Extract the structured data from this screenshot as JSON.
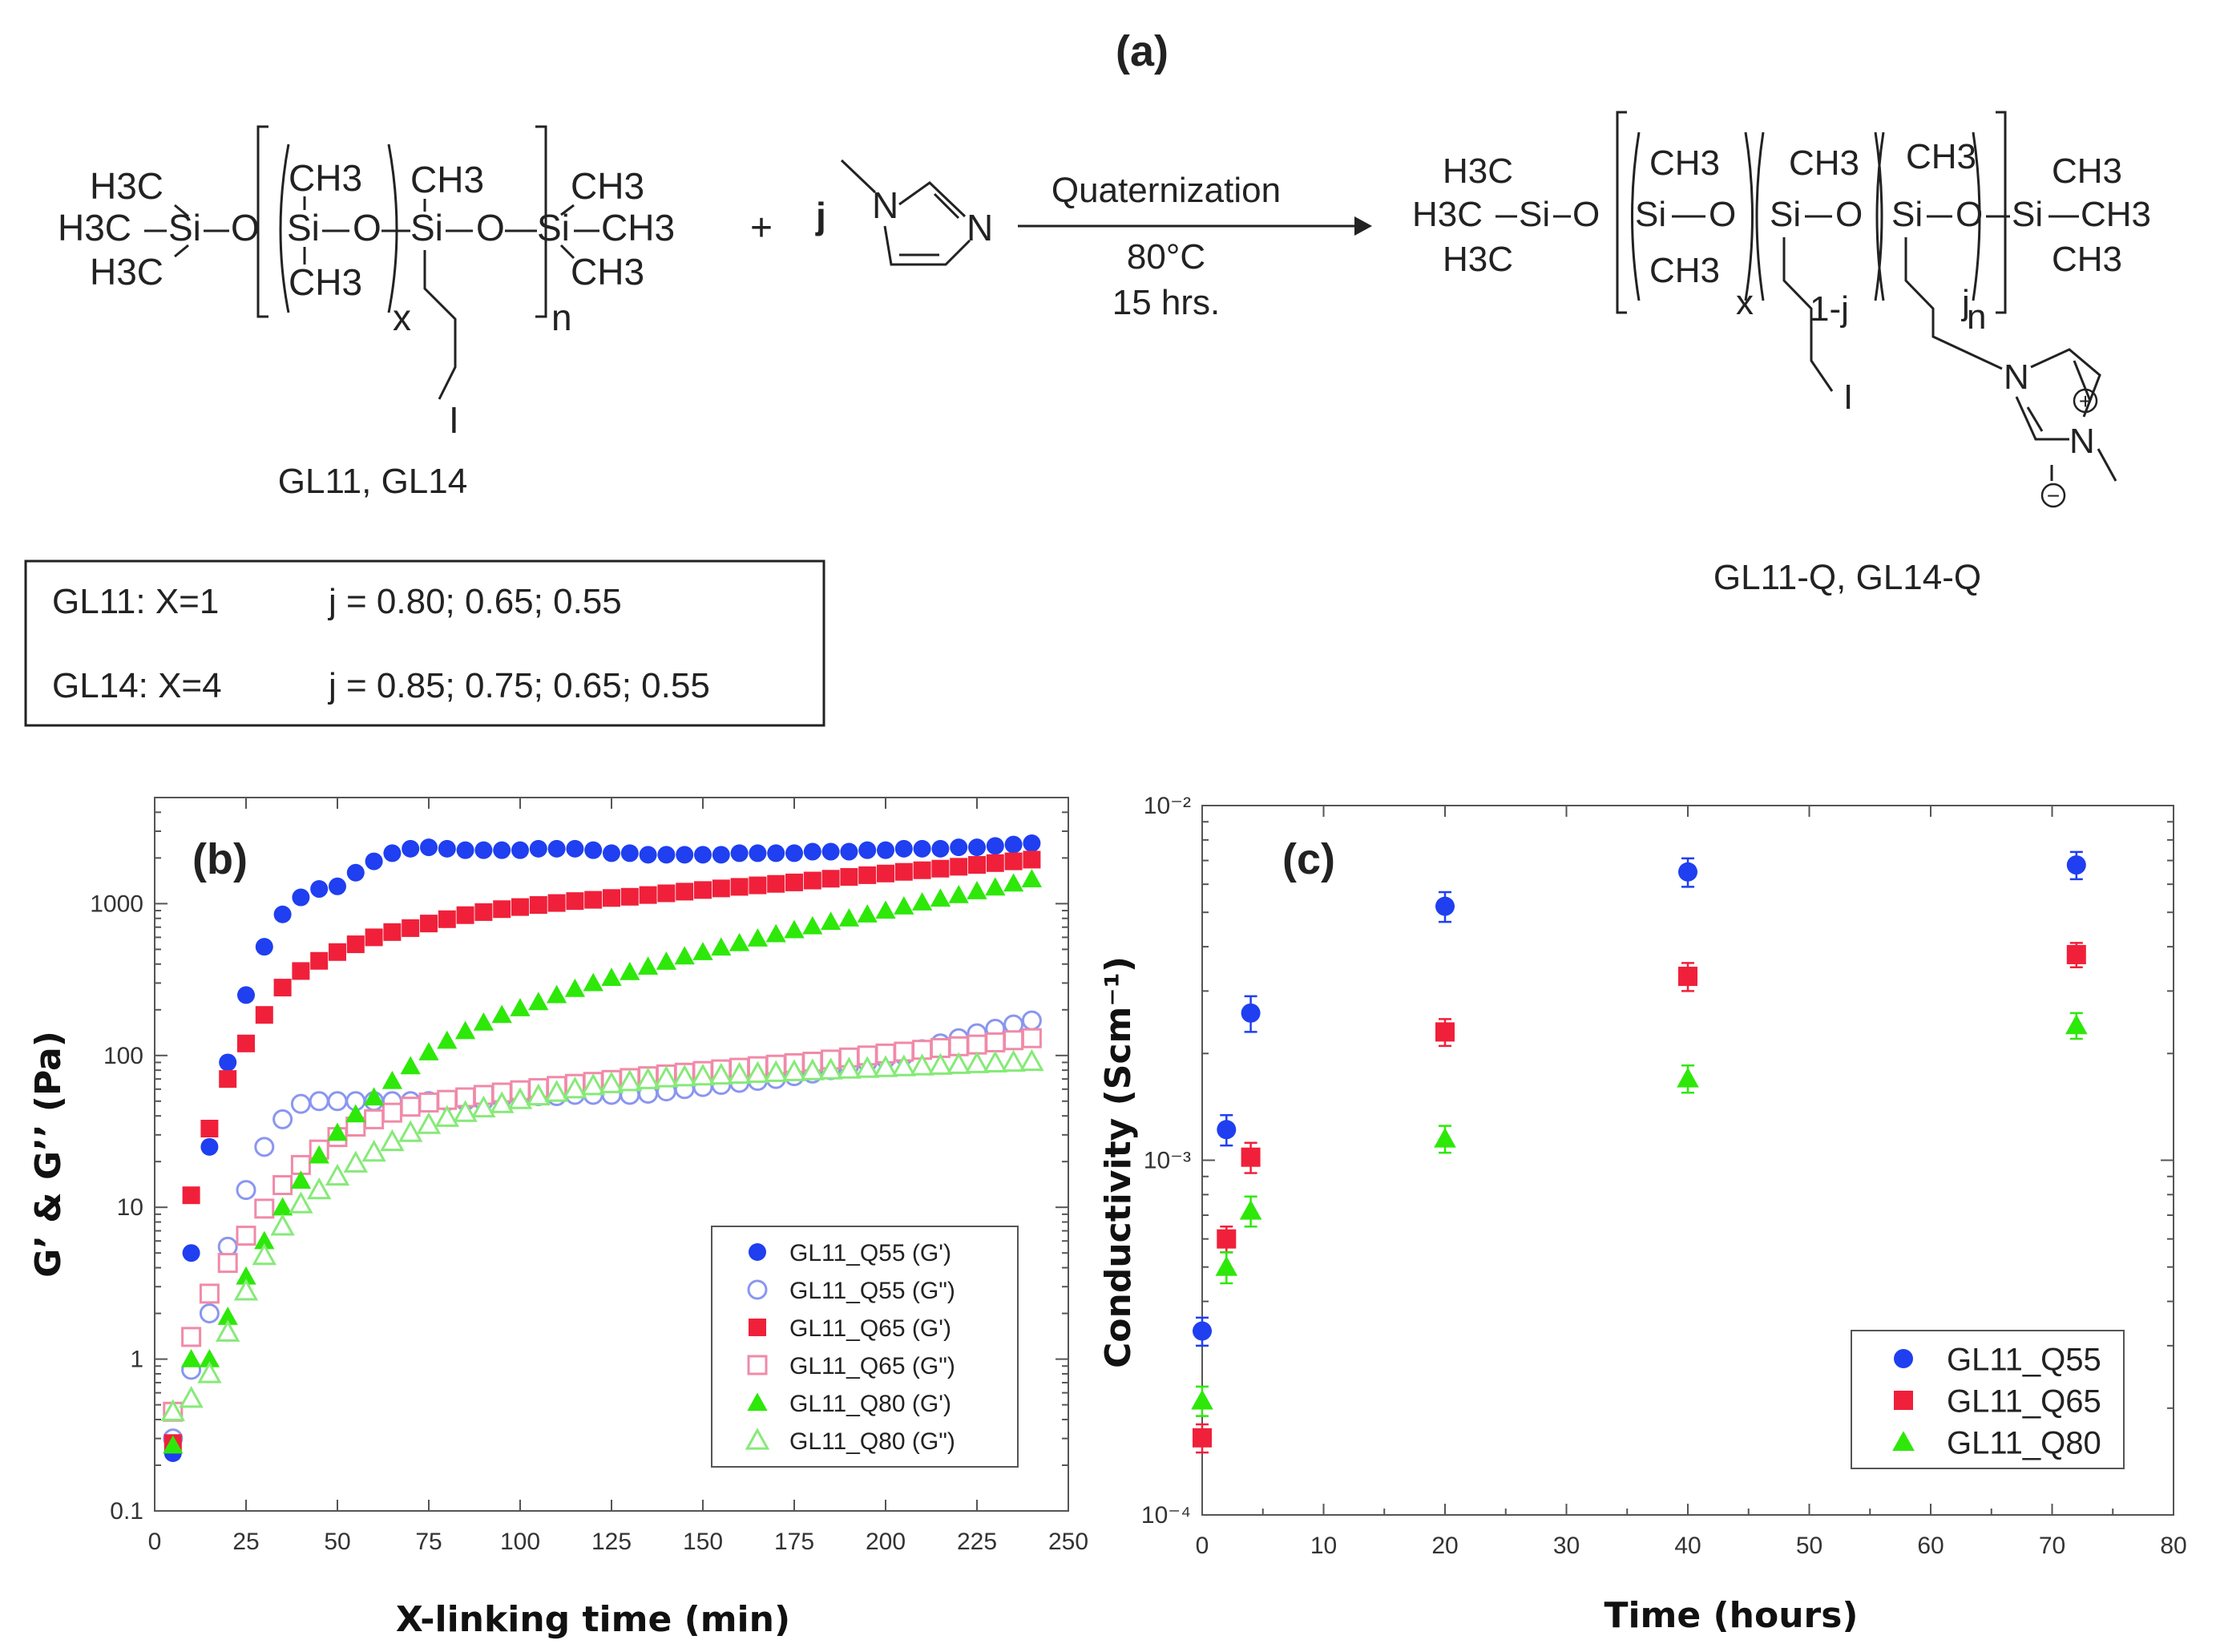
{
  "figure": {
    "panel_a": {
      "label": "(a)",
      "reagent_j": "j",
      "arrow_top": "Quaternization",
      "arrow_temp": "80°C",
      "arrow_time": "15 hrs.",
      "reactant_name": "GL11, GL14",
      "product_name": "GL11-Q, GL14-Q",
      "plus": "+",
      "table": {
        "row1_name": "GL11: X=1",
        "row1_j": "j = 0.80; 0.65; 0.55",
        "row2_name": "GL14: X=4",
        "row2_j": "j = 0.85; 0.75; 0.65; 0.55"
      },
      "atoms": {
        "H3C": "H3C",
        "CH3": "CH3",
        "Si": "Si",
        "O": "O",
        "I": "I",
        "N": "N",
        "x": "x",
        "n": "n",
        "j": "j",
        "one_minus_j": "1-j",
        "plus_charge": "+",
        "minus_charge": "−"
      }
    },
    "panel_b_label": "(b)",
    "panel_c_label": "(c)"
  },
  "colors": {
    "blue": "#1f3ff0",
    "blue_light": "#8a96f0",
    "red": "#f0203a",
    "pink": "#f08aa8",
    "green": "#2ee80a",
    "green_light": "#86ea78"
  },
  "chart_data": [
    {
      "id": "b",
      "type": "scatter",
      "title": "",
      "xlabel": "X-linking time (min)",
      "ylabel": "G’ & G’’ (Pa)",
      "xlim": [
        0,
        250
      ],
      "ylim": [
        0.1,
        5000
      ],
      "yscale": "log",
      "xticks": [
        "0",
        "25",
        "50",
        "75",
        "100",
        "125",
        "150",
        "175",
        "200",
        "225",
        "250"
      ],
      "yticks": [
        {
          "v": 0.1,
          "label": "0.1"
        },
        {
          "v": 1,
          "label": "1"
        },
        {
          "v": 10,
          "label": "10"
        },
        {
          "v": 100,
          "label": "100"
        },
        {
          "v": 1000,
          "label": "1000"
        }
      ],
      "legend_position": "bottom-right",
      "x": [
        5,
        10,
        15,
        20,
        25,
        30,
        35,
        40,
        45,
        50,
        55,
        60,
        65,
        70,
        75,
        80,
        85,
        90,
        95,
        100,
        105,
        110,
        115,
        120,
        125,
        130,
        135,
        140,
        145,
        150,
        155,
        160,
        165,
        170,
        175,
        180,
        185,
        190,
        195,
        200,
        205,
        210,
        215,
        220,
        225,
        230,
        235,
        240
      ],
      "series": [
        {
          "name": "GL11_Q55 (G')",
          "marker": "circle",
          "filled": true,
          "color": "#1f3ff0",
          "values": [
            0.24,
            5,
            25,
            90,
            250,
            520,
            850,
            1100,
            1250,
            1300,
            1600,
            1900,
            2150,
            2300,
            2350,
            2300,
            2250,
            2250,
            2250,
            2250,
            2300,
            2300,
            2300,
            2250,
            2150,
            2150,
            2100,
            2100,
            2100,
            2100,
            2100,
            2150,
            2150,
            2150,
            2150,
            2200,
            2200,
            2200,
            2250,
            2250,
            2300,
            2300,
            2300,
            2350,
            2350,
            2400,
            2450,
            2500
          ]
        },
        {
          "name": "GL11_Q55 (G\")",
          "marker": "circle",
          "filled": false,
          "color": "#8a96f0",
          "values": [
            0.3,
            0.85,
            2,
            5.5,
            13,
            25,
            38,
            48,
            50,
            50,
            50,
            50,
            50,
            50,
            50,
            50,
            50,
            50,
            52,
            53,
            54,
            54,
            55,
            55,
            55,
            55,
            56,
            58,
            60,
            62,
            64,
            66,
            68,
            70,
            73,
            76,
            80,
            85,
            90,
            95,
            100,
            110,
            120,
            130,
            140,
            150,
            160,
            170
          ]
        },
        {
          "name": "GL11_Q65 (G')",
          "marker": "square",
          "filled": true,
          "color": "#f0203a",
          "values": [
            0.28,
            12,
            33,
            70,
            120,
            185,
            280,
            360,
            420,
            480,
            540,
            600,
            650,
            690,
            740,
            790,
            840,
            880,
            920,
            950,
            980,
            1010,
            1040,
            1060,
            1090,
            1110,
            1140,
            1170,
            1200,
            1230,
            1260,
            1290,
            1320,
            1350,
            1380,
            1420,
            1460,
            1500,
            1540,
            1580,
            1620,
            1660,
            1700,
            1750,
            1800,
            1850,
            1900,
            1950
          ]
        },
        {
          "name": "GL11_Q65 (G\")",
          "marker": "square",
          "filled": false,
          "color": "#f08aa8",
          "values": [
            0.45,
            1.4,
            2.7,
            4.3,
            6.5,
            9.8,
            14,
            19,
            24,
            29,
            34,
            38,
            42,
            46,
            49,
            51,
            53,
            55,
            57,
            59,
            61,
            63,
            65,
            67,
            69,
            71,
            73,
            75,
            77,
            79,
            81,
            83,
            85,
            87,
            89,
            91,
            94,
            97,
            100,
            103,
            106,
            109,
            112,
            115,
            118,
            122,
            126,
            130
          ]
        },
        {
          "name": "GL11_Q80 (G')",
          "marker": "triangle",
          "filled": true,
          "color": "#2ee80a",
          "values": [
            0.27,
            1.0,
            1.0,
            1.9,
            3.5,
            6,
            10,
            15,
            22,
            31,
            41,
            53,
            68,
            85,
            105,
            125,
            145,
            165,
            185,
            205,
            225,
            250,
            275,
            300,
            325,
            355,
            385,
            415,
            450,
            480,
            515,
            550,
            590,
            630,
            670,
            710,
            760,
            800,
            850,
            900,
            960,
            1020,
            1080,
            1140,
            1210,
            1280,
            1360,
            1450
          ]
        },
        {
          "name": "GL11_Q80 (G\")",
          "marker": "triangle",
          "filled": false,
          "color": "#86ea78",
          "values": [
            0.45,
            0.55,
            0.8,
            1.5,
            2.8,
            4.8,
            7.5,
            10.5,
            13,
            16,
            19.5,
            23,
            27,
            31,
            35,
            39,
            42,
            45,
            48,
            51,
            54,
            57,
            60,
            63,
            65,
            67,
            69,
            71,
            72,
            73,
            74,
            75,
            76,
            77,
            78,
            79,
            80,
            81,
            82,
            83,
            84,
            85,
            86,
            87,
            88,
            89,
            90,
            91
          ]
        }
      ]
    },
    {
      "id": "c",
      "type": "scatter",
      "title": "",
      "xlabel": "Time (hours)",
      "ylabel": "Conductivity (Scm⁻¹)",
      "xlim": [
        0,
        80
      ],
      "ylim": [
        0.0001,
        0.01
      ],
      "yscale": "log",
      "xticks": [
        "0",
        "10",
        "20",
        "30",
        "40",
        "50",
        "60",
        "70",
        "80"
      ],
      "yticks": [
        {
          "v": 0.0001,
          "label": "10⁻⁴"
        },
        {
          "v": 0.001,
          "label": "10⁻³"
        },
        {
          "v": 0.01,
          "label": "10⁻²"
        }
      ],
      "legend_position": "bottom-right",
      "x": [
        0,
        2,
        4,
        20,
        40,
        72
      ],
      "series": [
        {
          "name": "GL11_Q55",
          "marker": "circle",
          "filled": true,
          "color": "#1f3ff0",
          "values": [
            0.00033,
            0.00122,
            0.0026,
            0.0052,
            0.0065,
            0.0068
          ],
          "errors": [
            3e-05,
            0.00012,
            0.0003,
            0.0005,
            0.0006,
            0.0006
          ]
        },
        {
          "name": "GL11_Q65",
          "marker": "square",
          "filled": true,
          "color": "#f0203a",
          "values": [
            0.000165,
            0.0006,
            0.00102,
            0.0023,
            0.0033,
            0.0038
          ],
          "errors": [
            1.5e-05,
            5e-05,
            0.0001,
            0.0002,
            0.0003,
            0.0003
          ]
        },
        {
          "name": "GL11_Q80",
          "marker": "triangle",
          "filled": true,
          "color": "#2ee80a",
          "values": [
            0.00021,
            0.0005,
            0.00072,
            0.00115,
            0.0017,
            0.0024
          ],
          "errors": [
            2e-05,
            5e-05,
            7e-05,
            0.0001,
            0.00015,
            0.0002
          ]
        }
      ]
    }
  ]
}
